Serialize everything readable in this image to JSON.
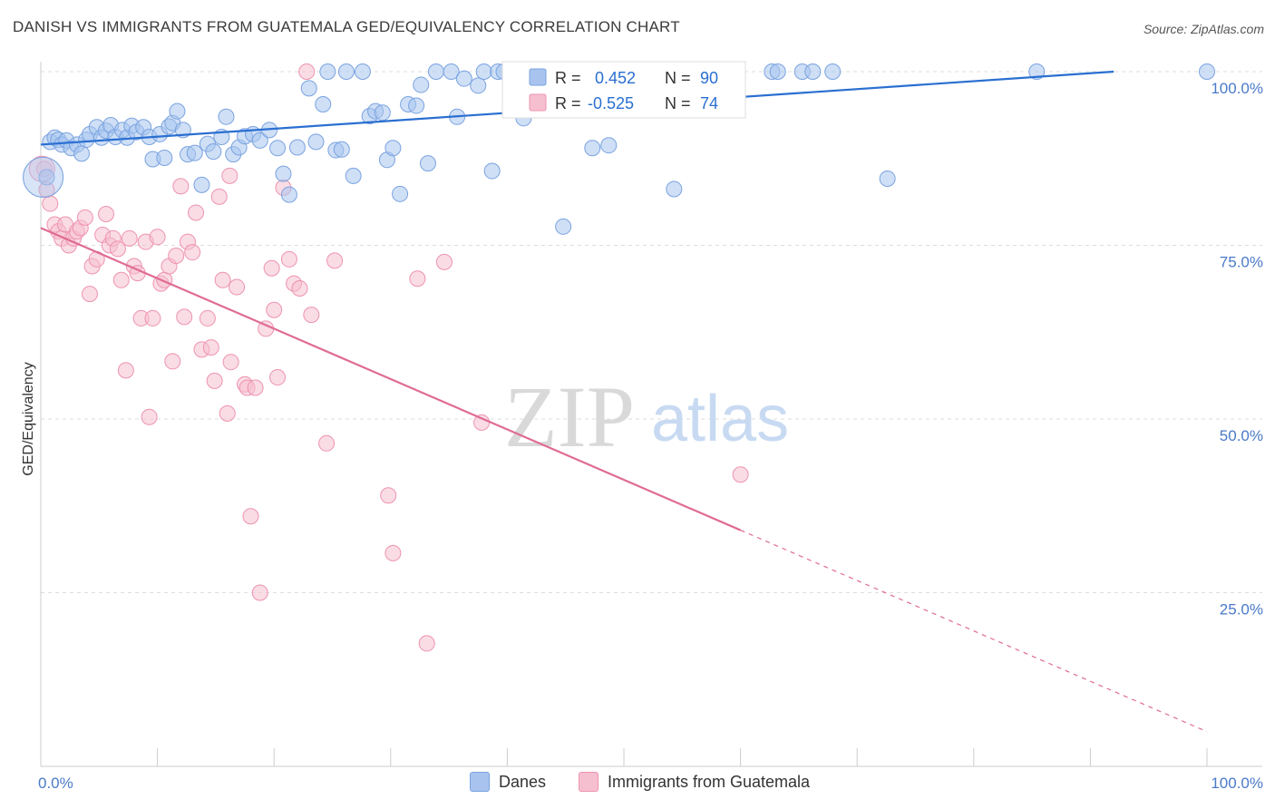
{
  "title": "DANISH VS IMMIGRANTS FROM GUATEMALA GED/EQUIVALENCY CORRELATION CHART",
  "source": "Source: ZipAtlas.com",
  "watermark": {
    "zip": "ZIP",
    "atlas": "atlas"
  },
  "colors": {
    "blue_fill": "#a8c4ee",
    "blue_stroke": "#7aa3e0",
    "blue_line": "#2a6fd1",
    "pink_fill": "#f6bfd0",
    "pink_stroke": "#ee93b0",
    "pink_line": "#e06b94",
    "grid": "#dddddd",
    "tick_label": "#4a7ac8"
  },
  "legend_box": {
    "rows": [
      {
        "r_label": "R =",
        "r_value": "0.452",
        "n_label": "N =",
        "n_value": "90",
        "series": "Danes"
      },
      {
        "r_label": "R =",
        "r_value": "-0.525",
        "n_label": "N =",
        "n_value": "74",
        "series": "Immigrants from Guatemala"
      }
    ]
  },
  "bottom_legend": [
    {
      "label": "Danes"
    },
    {
      "label": "Immigrants from Guatemala"
    }
  ],
  "chart_data": {
    "type": "scatter",
    "title": "DANISH VS IMMIGRANTS FROM GUATEMALA GED/EQUIVALENCY CORRELATION CHART",
    "xlabel": "",
    "ylabel": "GED/Equivalency",
    "xlim": [
      0,
      100
    ],
    "ylim": [
      0,
      100
    ],
    "x_tick_labels": [
      "0.0%",
      "100.0%"
    ],
    "y_tick_labels": [
      "100.0%",
      "75.0%",
      "50.0%",
      "25.0%"
    ],
    "y_ticks": [
      100,
      75,
      50,
      25
    ],
    "x_minor_ticks": [
      0,
      10,
      20,
      30,
      40,
      50,
      60,
      70,
      80,
      90,
      100
    ],
    "grid": true,
    "series": [
      {
        "name": "Danes",
        "trend": {
          "x0": 0,
          "y0": 89.5,
          "x1": 92,
          "y1": 100
        },
        "points": [
          [
            0.5,
            84.8
          ],
          [
            0.8,
            89.9
          ],
          [
            1.2,
            90.5
          ],
          [
            1.5,
            90.2
          ],
          [
            1.8,
            89.5
          ],
          [
            2.2,
            90.1
          ],
          [
            2.6,
            89.0
          ],
          [
            3.1,
            89.5
          ],
          [
            3.5,
            88.2
          ],
          [
            3.9,
            90.2
          ],
          [
            4.2,
            91.0
          ],
          [
            4.8,
            92.0
          ],
          [
            5.2,
            90.5
          ],
          [
            5.6,
            91.5
          ],
          [
            6.0,
            92.3
          ],
          [
            6.4,
            90.6
          ],
          [
            7.0,
            91.6
          ],
          [
            7.4,
            90.5
          ],
          [
            7.8,
            92.2
          ],
          [
            8.2,
            91.3
          ],
          [
            8.8,
            92.0
          ],
          [
            9.3,
            90.6
          ],
          [
            9.6,
            87.4
          ],
          [
            10.2,
            91.0
          ],
          [
            10.6,
            87.6
          ],
          [
            11.0,
            92.1
          ],
          [
            11.3,
            92.6
          ],
          [
            11.7,
            94.3
          ],
          [
            12.2,
            91.6
          ],
          [
            12.6,
            88.1
          ],
          [
            13.2,
            88.3
          ],
          [
            13.8,
            83.7
          ],
          [
            14.3,
            89.6
          ],
          [
            14.8,
            88.5
          ],
          [
            15.5,
            90.6
          ],
          [
            15.9,
            93.5
          ],
          [
            16.5,
            88.1
          ],
          [
            17.0,
            89.1
          ],
          [
            17.5,
            90.7
          ],
          [
            18.2,
            91.0
          ],
          [
            18.8,
            90.1
          ],
          [
            19.6,
            91.6
          ],
          [
            20.3,
            89.0
          ],
          [
            20.8,
            85.3
          ],
          [
            21.3,
            82.3
          ],
          [
            22.0,
            89.1
          ],
          [
            23.0,
            97.6
          ],
          [
            23.6,
            89.9
          ],
          [
            24.2,
            95.3
          ],
          [
            24.6,
            100.0
          ],
          [
            25.3,
            88.7
          ],
          [
            25.8,
            88.8
          ],
          [
            26.2,
            100.0
          ],
          [
            26.8,
            85.0
          ],
          [
            27.6,
            100.0
          ],
          [
            28.2,
            93.6
          ],
          [
            28.7,
            94.3
          ],
          [
            29.3,
            94.1
          ],
          [
            29.7,
            87.3
          ],
          [
            30.2,
            89.0
          ],
          [
            30.8,
            82.4
          ],
          [
            31.5,
            95.3
          ],
          [
            32.2,
            95.1
          ],
          [
            32.6,
            98.1
          ],
          [
            33.2,
            86.8
          ],
          [
            33.9,
            100.0
          ],
          [
            35.2,
            100.0
          ],
          [
            35.7,
            93.5
          ],
          [
            36.3,
            99.0
          ],
          [
            37.5,
            98.0
          ],
          [
            38.0,
            100.0
          ],
          [
            38.7,
            85.7
          ],
          [
            39.2,
            100.0
          ],
          [
            39.7,
            100.0
          ],
          [
            41.0,
            100.0
          ],
          [
            41.4,
            93.3
          ],
          [
            42.3,
            96.8
          ],
          [
            44.5,
            100.0
          ],
          [
            44.8,
            77.7
          ],
          [
            47.3,
            89.0
          ],
          [
            48.7,
            89.4
          ],
          [
            53.0,
            100.0
          ],
          [
            54.3,
            83.1
          ],
          [
            62.7,
            100.0
          ],
          [
            63.2,
            100.0
          ],
          [
            65.3,
            100.0
          ],
          [
            66.2,
            100.0
          ],
          [
            67.9,
            100.0
          ],
          [
            72.6,
            84.6
          ],
          [
            85.4,
            100.0
          ]
        ],
        "extra_points": [
          [
            100.0,
            100.0
          ]
        ]
      },
      {
        "name": "Immigrants from Guatemala",
        "trend": {
          "x0": 0,
          "y0": 77.5,
          "x1": 60,
          "y1": 34
        },
        "trend_dashed": {
          "x0": 60,
          "y0": 34,
          "x1": 100,
          "y1": 5
        },
        "points": [
          [
            0.3,
            86.0
          ],
          [
            0.5,
            83.0
          ],
          [
            0.8,
            81.0
          ],
          [
            1.2,
            78.0
          ],
          [
            1.5,
            77.0
          ],
          [
            1.8,
            76.0
          ],
          [
            2.1,
            78.0
          ],
          [
            2.4,
            75.0
          ],
          [
            2.8,
            76.0
          ],
          [
            3.1,
            77.0
          ],
          [
            3.4,
            77.5
          ],
          [
            3.8,
            79.0
          ],
          [
            4.2,
            68.0
          ],
          [
            4.4,
            72.0
          ],
          [
            4.8,
            73.0
          ],
          [
            5.3,
            76.5
          ],
          [
            5.6,
            79.5
          ],
          [
            5.9,
            75.0
          ],
          [
            6.2,
            76.0
          ],
          [
            6.6,
            74.5
          ],
          [
            6.9,
            70.0
          ],
          [
            7.3,
            57.0
          ],
          [
            7.6,
            76.0
          ],
          [
            8.0,
            72.0
          ],
          [
            8.3,
            71.0
          ],
          [
            8.6,
            64.5
          ],
          [
            9.0,
            75.5
          ],
          [
            9.3,
            50.3
          ],
          [
            9.6,
            64.5
          ],
          [
            10.0,
            76.2
          ],
          [
            10.3,
            69.5
          ],
          [
            10.6,
            70.0
          ],
          [
            11.0,
            72.0
          ],
          [
            11.3,
            58.3
          ],
          [
            11.6,
            73.5
          ],
          [
            12.0,
            83.5
          ],
          [
            12.3,
            64.7
          ],
          [
            12.6,
            75.5
          ],
          [
            13.0,
            74.0
          ],
          [
            13.3,
            79.7
          ],
          [
            13.8,
            60.0
          ],
          [
            14.3,
            64.5
          ],
          [
            14.6,
            60.3
          ],
          [
            14.9,
            55.5
          ],
          [
            15.3,
            82.0
          ],
          [
            15.6,
            70.0
          ],
          [
            16.0,
            50.8
          ],
          [
            16.2,
            85.0
          ],
          [
            16.3,
            58.2
          ],
          [
            16.8,
            69.0
          ],
          [
            17.5,
            55.0
          ],
          [
            17.7,
            54.5
          ],
          [
            18.0,
            36.0
          ],
          [
            18.4,
            54.5
          ],
          [
            18.8,
            25.0
          ],
          [
            19.3,
            63.0
          ],
          [
            19.8,
            71.7
          ],
          [
            20.0,
            65.7
          ],
          [
            20.3,
            56.0
          ],
          [
            20.8,
            83.3
          ],
          [
            21.3,
            73.0
          ],
          [
            21.7,
            69.5
          ],
          [
            22.2,
            68.8
          ],
          [
            22.8,
            100.0
          ],
          [
            23.2,
            65.0
          ],
          [
            24.5,
            46.5
          ],
          [
            25.2,
            72.8
          ],
          [
            29.8,
            39.0
          ],
          [
            30.2,
            30.7
          ],
          [
            32.3,
            70.2
          ],
          [
            33.1,
            17.7
          ],
          [
            34.6,
            72.6
          ],
          [
            37.8,
            49.5
          ],
          [
            60.0,
            42.0
          ]
        ]
      }
    ]
  }
}
